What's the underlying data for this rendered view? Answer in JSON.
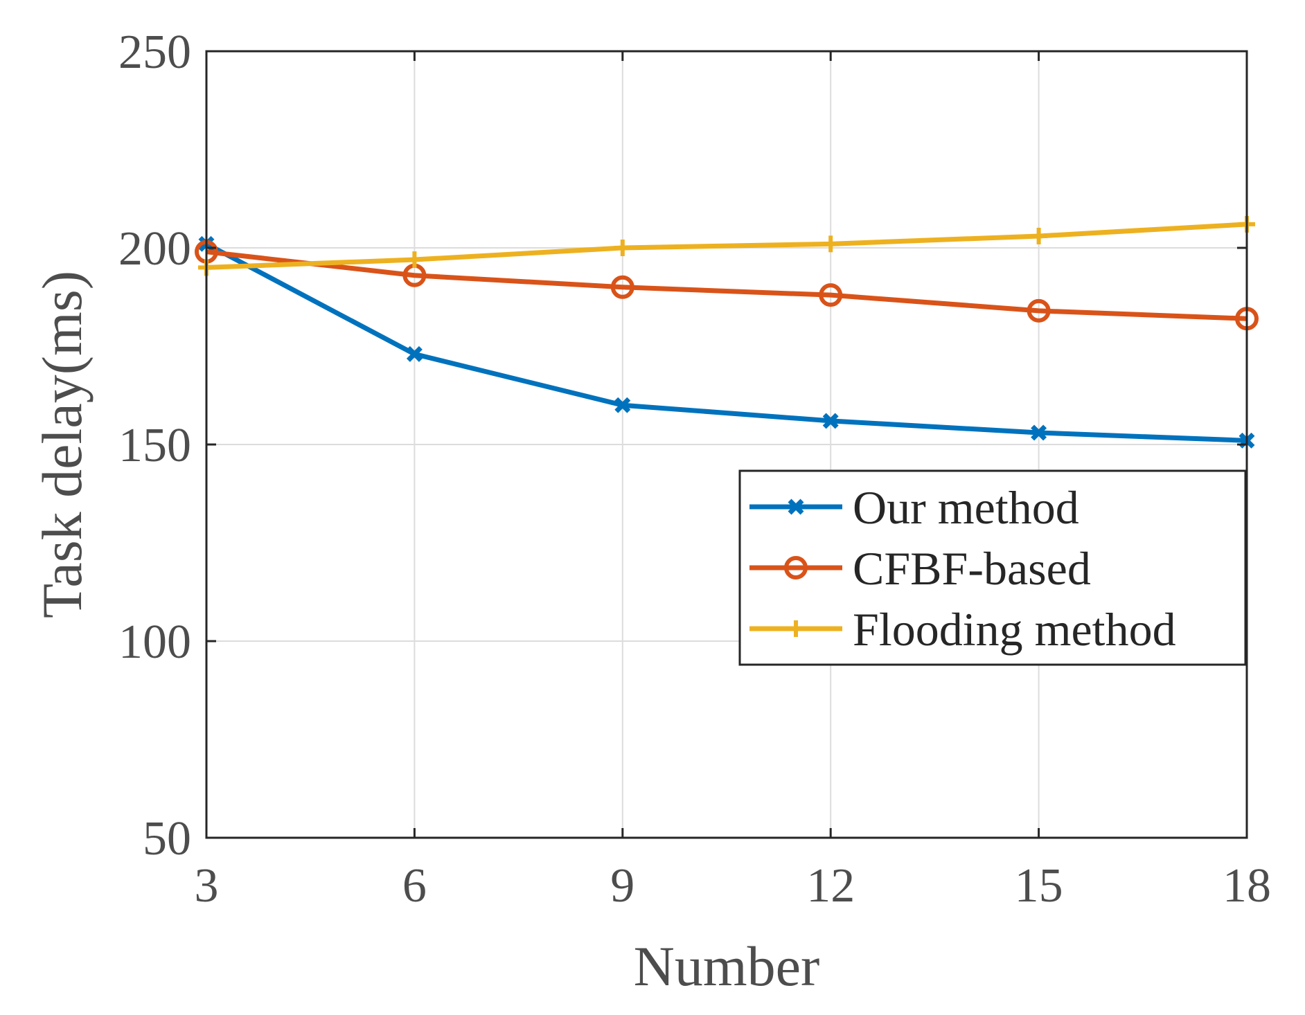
{
  "chart_data": {
    "type": "line",
    "title": "",
    "xlabel": "Number",
    "ylabel": "Task delay(ms)",
    "x": [
      3,
      6,
      9,
      12,
      15,
      18
    ],
    "xticks": [
      "3",
      "6",
      "9",
      "12",
      "15",
      "18"
    ],
    "yticks": [
      "50",
      "100",
      "150",
      "200",
      "250"
    ],
    "xlim": [
      3,
      18
    ],
    "ylim": [
      50,
      250
    ],
    "grid": true,
    "legend_position": "right",
    "series": [
      {
        "name": "Our method",
        "color": "#0072bd",
        "marker": "x",
        "values": [
          201,
          173,
          160,
          156,
          153,
          151
        ]
      },
      {
        "name": "CFBF-based",
        "color": "#d95319",
        "marker": "o",
        "values": [
          199,
          193,
          190,
          188,
          184,
          182
        ]
      },
      {
        "name": "Flooding method",
        "color": "#edb120",
        "marker": "+",
        "values": [
          195,
          197,
          200,
          201,
          203,
          206
        ]
      }
    ]
  }
}
